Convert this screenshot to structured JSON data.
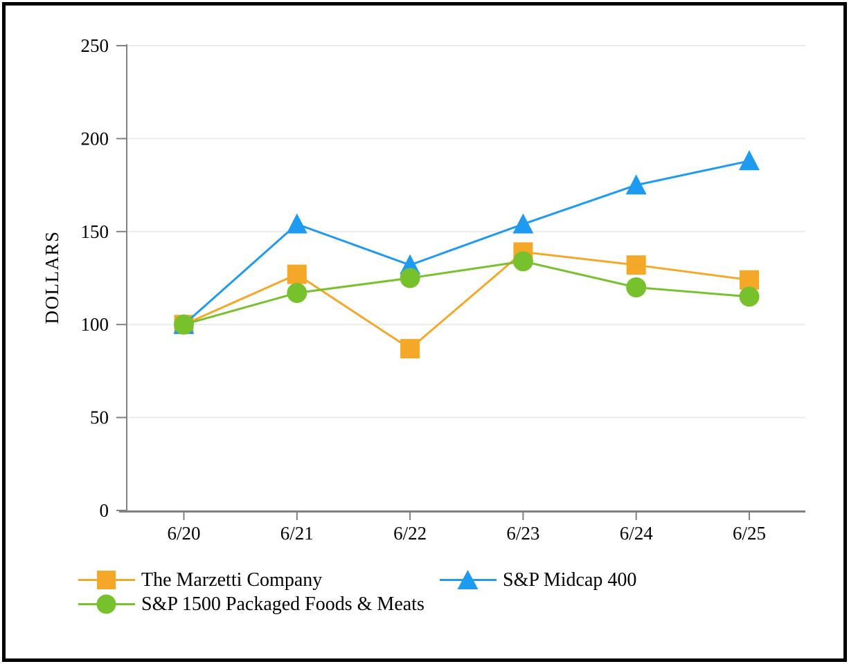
{
  "chart_data": {
    "type": "line",
    "title": "",
    "xlabel": "",
    "ylabel": "DOLLARS",
    "categories": [
      "6/20",
      "6/21",
      "6/22",
      "6/23",
      "6/24",
      "6/25"
    ],
    "y_ticks": [
      0,
      50,
      100,
      150,
      200,
      250
    ],
    "ylim": [
      0,
      250
    ],
    "grid": "horizontal-only",
    "legend_position": "bottom",
    "axis_color": "#808080",
    "gridline_color": "#EBEBEB",
    "series": [
      {
        "name": "The Marzetti Company",
        "marker": "square",
        "color": "#F5A828",
        "values": [
          100,
          127,
          87,
          139,
          132,
          124
        ]
      },
      {
        "name": "S&P Midcap 400",
        "marker": "triangle",
        "color": "#1E9BF0",
        "values": [
          100,
          154,
          132,
          154,
          175,
          188
        ]
      },
      {
        "name": "S&P 1500 Packaged Foods & Meats",
        "marker": "circle",
        "color": "#76C12C",
        "values": [
          100,
          117,
          125,
          134,
          120,
          115
        ]
      }
    ]
  }
}
